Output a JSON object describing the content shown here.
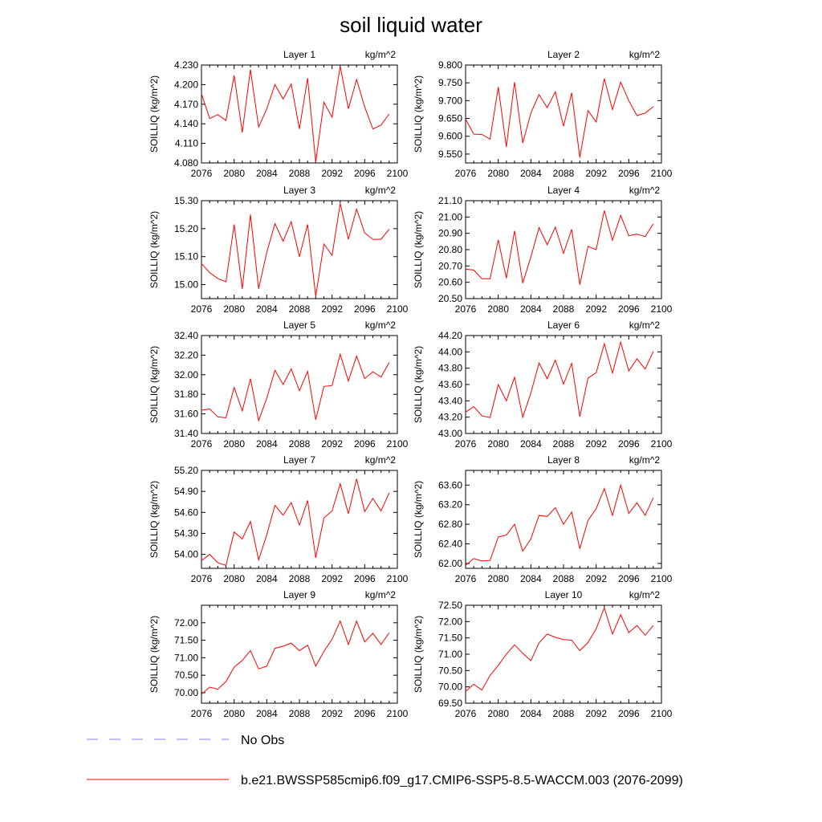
{
  "figure": {
    "title": "soil liquid water"
  },
  "legend": {
    "items": [
      {
        "label": "No Obs",
        "color": "#8080ff",
        "style": "dashed"
      },
      {
        "label": "b.e21.BWSSP585cmip6.f09_g17.CMIP6-SSP5-8.5-WACCM.003 (2076-2099)",
        "color": "#ff0000",
        "style": "solid"
      }
    ]
  },
  "chart_data": [
    {
      "type": "line",
      "title": "Layer 1",
      "units_label": "kg/m^2",
      "ylabel": "SOILLIQ  (kg/m^2)",
      "xlim": [
        2076,
        2100
      ],
      "xticks": [
        2076,
        2080,
        2084,
        2088,
        2092,
        2096,
        2100
      ],
      "ylim": [
        4.08,
        4.23
      ],
      "yticks": [
        "4.080",
        "4.110",
        "4.140",
        "4.170",
        "4.200",
        "4.230"
      ],
      "series": [
        {
          "color": "#ff0000",
          "x": [
            2076,
            2077,
            2078,
            2079,
            2080,
            2081,
            2082,
            2083,
            2084,
            2085,
            2086,
            2087,
            2088,
            2089,
            2090,
            2091,
            2092,
            2093,
            2094,
            2095,
            2096,
            2097,
            2098,
            2099
          ],
          "y": [
            4.186,
            4.148,
            4.154,
            4.145,
            4.214,
            4.127,
            4.223,
            4.135,
            4.163,
            4.2,
            4.178,
            4.201,
            4.132,
            4.21,
            4.081,
            4.173,
            4.15,
            4.228,
            4.163,
            4.208,
            4.166,
            4.132,
            4.138,
            4.155
          ]
        }
      ]
    },
    {
      "type": "line",
      "title": "Layer 2",
      "units_label": "kg/m^2",
      "ylabel": "SOILLIQ  (kg/m^2)",
      "xlim": [
        2076,
        2100
      ],
      "xticks": [
        2076,
        2080,
        2084,
        2088,
        2092,
        2096,
        2100
      ],
      "ylim": [
        9.525,
        9.8
      ],
      "yticks": [
        "9.550",
        "9.600",
        "9.650",
        "9.700",
        "9.750",
        "9.800"
      ],
      "series": [
        {
          "color": "#ff0000",
          "x": [
            2076,
            2077,
            2078,
            2079,
            2080,
            2081,
            2082,
            2083,
            2084,
            2085,
            2086,
            2087,
            2088,
            2089,
            2090,
            2091,
            2092,
            2093,
            2094,
            2095,
            2096,
            2097,
            2098,
            2099
          ],
          "y": [
            9.648,
            9.606,
            9.605,
            9.592,
            9.738,
            9.57,
            9.752,
            9.581,
            9.665,
            9.717,
            9.68,
            9.725,
            9.628,
            9.722,
            9.54,
            9.672,
            9.64,
            9.762,
            9.675,
            9.752,
            9.7,
            9.658,
            9.665,
            9.683
          ]
        }
      ]
    },
    {
      "type": "line",
      "title": "Layer 3",
      "units_label": "kg/m^2",
      "ylabel": "SOILLIQ  (kg/m^2)",
      "xlim": [
        2076,
        2100
      ],
      "xticks": [
        2076,
        2080,
        2084,
        2088,
        2092,
        2096,
        2100
      ],
      "ylim": [
        14.95,
        15.3
      ],
      "yticks": [
        "15.00",
        "15.10",
        "15.20",
        "15.30"
      ],
      "series": [
        {
          "color": "#ff0000",
          "x": [
            2076,
            2077,
            2078,
            2079,
            2080,
            2081,
            2082,
            2083,
            2084,
            2085,
            2086,
            2087,
            2088,
            2089,
            2090,
            2091,
            2092,
            2093,
            2094,
            2095,
            2096,
            2097,
            2098,
            2099
          ],
          "y": [
            15.075,
            15.043,
            15.022,
            15.01,
            15.215,
            14.985,
            15.25,
            14.985,
            15.115,
            15.218,
            15.155,
            15.225,
            15.1,
            15.215,
            14.958,
            15.145,
            15.105,
            15.29,
            15.162,
            15.27,
            15.185,
            15.162,
            15.162,
            15.198
          ]
        }
      ]
    },
    {
      "type": "line",
      "title": "Layer 4",
      "units_label": "kg/m^2",
      "ylabel": "SOILLIQ  (kg/m^2)",
      "xlim": [
        2076,
        2100
      ],
      "xticks": [
        2076,
        2080,
        2084,
        2088,
        2092,
        2096,
        2100
      ],
      "ylim": [
        20.5,
        21.1
      ],
      "yticks": [
        "20.50",
        "20.60",
        "20.70",
        "20.80",
        "20.90",
        "21.00",
        "21.10"
      ],
      "series": [
        {
          "color": "#ff0000",
          "x": [
            2076,
            2077,
            2078,
            2079,
            2080,
            2081,
            2082,
            2083,
            2084,
            2085,
            2086,
            2087,
            2088,
            2089,
            2090,
            2091,
            2092,
            2093,
            2094,
            2095,
            2096,
            2097,
            2098,
            2099
          ],
          "y": [
            20.68,
            20.675,
            20.622,
            20.622,
            20.86,
            20.625,
            20.915,
            20.595,
            20.755,
            20.935,
            20.83,
            20.938,
            20.778,
            20.925,
            20.585,
            20.82,
            20.8,
            21.04,
            20.858,
            21.01,
            20.885,
            20.895,
            20.88,
            20.958
          ]
        }
      ]
    },
    {
      "type": "line",
      "title": "Layer 5",
      "units_label": "kg/m^2",
      "ylabel": "SOILLIQ  (kg/m^2)",
      "xlim": [
        2076,
        2100
      ],
      "xticks": [
        2076,
        2080,
        2084,
        2088,
        2092,
        2096,
        2100
      ],
      "ylim": [
        31.4,
        32.4
      ],
      "yticks": [
        "31.40",
        "31.60",
        "31.80",
        "32.00",
        "32.20",
        "32.40"
      ],
      "series": [
        {
          "color": "#ff0000",
          "x": [
            2076,
            2077,
            2078,
            2079,
            2080,
            2081,
            2082,
            2083,
            2084,
            2085,
            2086,
            2087,
            2088,
            2089,
            2090,
            2091,
            2092,
            2093,
            2094,
            2095,
            2096,
            2097,
            2098,
            2099
          ],
          "y": [
            31.638,
            31.65,
            31.57,
            31.56,
            31.87,
            31.63,
            31.96,
            31.53,
            31.76,
            32.045,
            31.9,
            32.06,
            31.835,
            32.035,
            31.54,
            31.88,
            31.89,
            32.21,
            31.935,
            32.19,
            31.96,
            32.03,
            31.975,
            32.125
          ]
        }
      ]
    },
    {
      "type": "line",
      "title": "Layer 6",
      "units_label": "kg/m^2",
      "ylabel": "SOILLIQ  (kg/m^2)",
      "xlim": [
        2076,
        2100
      ],
      "xticks": [
        2076,
        2080,
        2084,
        2088,
        2092,
        2096,
        2100
      ],
      "ylim": [
        43.0,
        44.2
      ],
      "yticks": [
        "43.00",
        "43.20",
        "43.40",
        "43.60",
        "43.80",
        "44.00",
        "44.20"
      ],
      "series": [
        {
          "color": "#ff0000",
          "x": [
            2076,
            2077,
            2078,
            2079,
            2080,
            2081,
            2082,
            2083,
            2084,
            2085,
            2086,
            2087,
            2088,
            2089,
            2090,
            2091,
            2092,
            2093,
            2094,
            2095,
            2096,
            2097,
            2098,
            2099
          ],
          "y": [
            43.262,
            43.33,
            43.215,
            43.195,
            43.598,
            43.4,
            43.69,
            43.2,
            43.495,
            43.865,
            43.67,
            43.9,
            43.605,
            43.86,
            43.205,
            43.68,
            43.745,
            44.1,
            43.74,
            44.12,
            43.765,
            43.915,
            43.79,
            44.005
          ]
        }
      ]
    },
    {
      "type": "line",
      "title": "Layer 7",
      "units_label": "kg/m^2",
      "ylabel": "SOILLIQ  (kg/m^2)",
      "xlim": [
        2076,
        2100
      ],
      "xticks": [
        2076,
        2080,
        2084,
        2088,
        2092,
        2096,
        2100
      ],
      "ylim": [
        53.8,
        55.2
      ],
      "yticks": [
        "54.00",
        "54.30",
        "54.60",
        "54.90",
        "55.20"
      ],
      "series": [
        {
          "color": "#ff0000",
          "x": [
            2076,
            2077,
            2078,
            2079,
            2080,
            2081,
            2082,
            2083,
            2084,
            2085,
            2086,
            2087,
            2088,
            2089,
            2090,
            2091,
            2092,
            2093,
            2094,
            2095,
            2096,
            2097,
            2098,
            2099
          ],
          "y": [
            53.91,
            54.0,
            53.88,
            53.84,
            54.32,
            54.22,
            54.47,
            53.92,
            54.28,
            54.7,
            54.56,
            54.74,
            54.42,
            54.77,
            53.95,
            54.52,
            54.62,
            55.01,
            54.58,
            55.08,
            54.61,
            54.8,
            54.62,
            54.88
          ]
        }
      ]
    },
    {
      "type": "line",
      "title": "Layer 8",
      "units_label": "kg/m^2",
      "ylabel": "SOILLIQ  (kg/m^2)",
      "xlim": [
        2076,
        2100
      ],
      "xticks": [
        2076,
        2080,
        2084,
        2088,
        2092,
        2096,
        2100
      ],
      "ylim": [
        61.9,
        63.9
      ],
      "yticks": [
        "62.00",
        "62.40",
        "62.80",
        "63.20",
        "63.60"
      ],
      "series": [
        {
          "color": "#ff0000",
          "x": [
            2076,
            2077,
            2078,
            2079,
            2080,
            2081,
            2082,
            2083,
            2084,
            2085,
            2086,
            2087,
            2088,
            2089,
            2090,
            2091,
            2092,
            2093,
            2094,
            2095,
            2096,
            2097,
            2098,
            2099
          ],
          "y": [
            61.96,
            62.1,
            62.05,
            62.06,
            62.54,
            62.58,
            62.8,
            62.25,
            62.5,
            62.98,
            62.96,
            63.14,
            62.8,
            63.05,
            62.3,
            62.88,
            63.12,
            63.53,
            62.98,
            63.6,
            63.02,
            63.24,
            62.98,
            63.34
          ]
        }
      ]
    },
    {
      "type": "line",
      "title": "Layer 9",
      "units_label": "kg/m^2",
      "ylabel": "SOILLIQ  (kg/m^2)",
      "xlim": [
        2076,
        2100
      ],
      "xticks": [
        2076,
        2080,
        2084,
        2088,
        2092,
        2096,
        2100
      ],
      "ylim": [
        69.7,
        72.5
      ],
      "yticks": [
        "70.00",
        "70.50",
        "71.00",
        "71.50",
        "72.00"
      ],
      "series": [
        {
          "color": "#ff0000",
          "x": [
            2076,
            2077,
            2078,
            2079,
            2080,
            2081,
            2082,
            2083,
            2084,
            2085,
            2086,
            2087,
            2088,
            2089,
            2090,
            2091,
            2092,
            2093,
            2094,
            2095,
            2096,
            2097,
            2098,
            2099
          ],
          "y": [
            69.96,
            70.16,
            70.1,
            70.32,
            70.73,
            70.92,
            71.2,
            70.68,
            70.76,
            71.27,
            71.33,
            71.42,
            71.2,
            71.36,
            70.76,
            71.18,
            71.53,
            72.05,
            71.38,
            72.05,
            71.45,
            71.7,
            71.38,
            71.71
          ]
        }
      ]
    },
    {
      "type": "line",
      "title": "Layer 10",
      "units_label": "kg/m^2",
      "ylabel": "SOILLIQ  (kg/m^2)",
      "xlim": [
        2076,
        2100
      ],
      "xticks": [
        2076,
        2080,
        2084,
        2088,
        2092,
        2096,
        2100
      ],
      "ylim": [
        69.5,
        72.5
      ],
      "yticks": [
        "69.50",
        "70.00",
        "70.50",
        "71.00",
        "71.50",
        "72.00",
        "72.50"
      ],
      "series": [
        {
          "color": "#ff0000",
          "x": [
            2076,
            2077,
            2078,
            2079,
            2080,
            2081,
            2082,
            2083,
            2084,
            2085,
            2086,
            2087,
            2088,
            2089,
            2090,
            2091,
            2092,
            2093,
            2094,
            2095,
            2096,
            2097,
            2098,
            2099
          ],
          "y": [
            69.86,
            70.08,
            69.9,
            70.35,
            70.66,
            71.0,
            71.29,
            71.03,
            70.8,
            71.35,
            71.62,
            71.52,
            71.45,
            71.43,
            71.11,
            71.36,
            71.78,
            72.42,
            71.62,
            72.21,
            71.66,
            71.88,
            71.58,
            71.88
          ]
        }
      ]
    }
  ]
}
